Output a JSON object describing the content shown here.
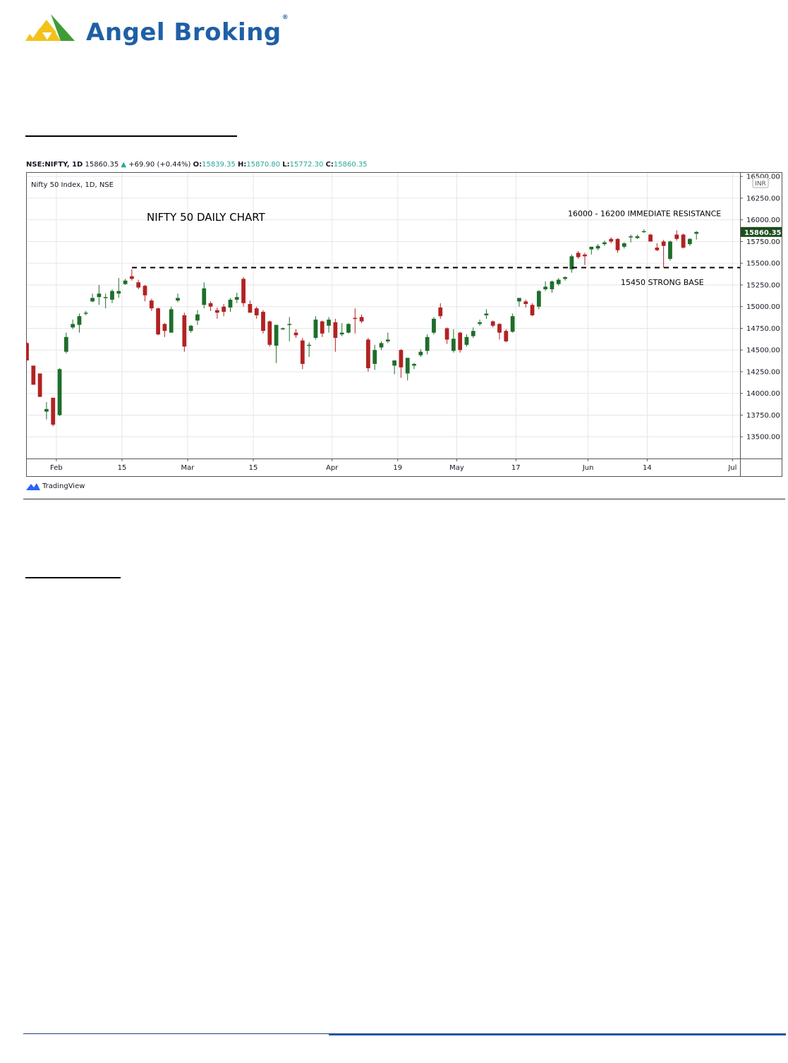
{
  "brand": {
    "name": "Angel Broking",
    "reg": "®"
  },
  "ohlc": {
    "symbol": "NSE:NIFTY, 1D",
    "last": "15860.35",
    "change": "+69.90 (+0.44%)",
    "o_label": "O:",
    "o": "15839.35",
    "h_label": "H:",
    "h": "15870.80",
    "l_label": "L:",
    "l": "15772.30",
    "c_label": "C:",
    "c": "15860.35"
  },
  "chart_data": {
    "type": "candlestick",
    "title": "NIFTY 50 DAILY CHART",
    "subtitle": "Nifty 50 Index, 1D, NSE",
    "currency": "INR",
    "last_price_label": "15860.35",
    "ylim": [
      13250,
      16550
    ],
    "y_ticks": [
      16500,
      16250,
      16000,
      15750,
      15500,
      15250,
      15000,
      14750,
      14500,
      14250,
      14000,
      13750,
      13500
    ],
    "y_tick_labels": [
      "16500.00",
      "16250.00",
      "16000.00",
      "15750.00",
      "15500.00",
      "15250.00",
      "15000.00",
      "14750.00",
      "14500.00",
      "14250.00",
      "14000.00",
      "13750.00",
      "13500.00"
    ],
    "x_ticks": [
      {
        "label": "Feb",
        "index": 4.5
      },
      {
        "label": "15",
        "index": 14.5
      },
      {
        "label": "Mar",
        "index": 24.5
      },
      {
        "label": "15",
        "index": 34.5
      },
      {
        "label": "Apr",
        "index": 46.5
      },
      {
        "label": "19",
        "index": 56.5
      },
      {
        "label": "May",
        "index": 65.5
      },
      {
        "label": "17",
        "index": 74.5
      },
      {
        "label": "Jun",
        "index": 85.5
      },
      {
        "label": "14",
        "index": 94.5
      },
      {
        "label": "Jul",
        "index": 107.5
      }
    ],
    "x_count": 109,
    "annotations": [
      {
        "text": "16000 - 16200 IMMEDIATE RESISTANCE",
        "value": 16040
      },
      {
        "text": "15450 STRONG BASE",
        "value": 15250
      },
      {
        "text": "support-line",
        "value": 15450
      }
    ],
    "candles": [
      {
        "o": 14580,
        "h": 14590,
        "l": 14380,
        "c": 14380
      },
      {
        "o": 14320,
        "h": 14320,
        "l": 14100,
        "c": 14100
      },
      {
        "o": 14230,
        "h": 14230,
        "l": 13960,
        "c": 13960
      },
      {
        "o": 13790,
        "h": 13900,
        "l": 13700,
        "c": 13820
      },
      {
        "o": 13950,
        "h": 13950,
        "l": 13620,
        "c": 13640
      },
      {
        "o": 13750,
        "h": 14290,
        "l": 13740,
        "c": 14280
      },
      {
        "o": 14480,
        "h": 14700,
        "l": 14460,
        "c": 14650
      },
      {
        "o": 14760,
        "h": 14850,
        "l": 14740,
        "c": 14800
      },
      {
        "o": 14790,
        "h": 14920,
        "l": 14700,
        "c": 14890
      },
      {
        "o": 14920,
        "h": 14950,
        "l": 14900,
        "c": 14930
      },
      {
        "o": 15060,
        "h": 15150,
        "l": 15050,
        "c": 15100
      },
      {
        "o": 15110,
        "h": 15250,
        "l": 15020,
        "c": 15150
      },
      {
        "o": 15100,
        "h": 15150,
        "l": 14980,
        "c": 15110
      },
      {
        "o": 15080,
        "h": 15200,
        "l": 15040,
        "c": 15180
      },
      {
        "o": 15150,
        "h": 15330,
        "l": 15100,
        "c": 15180
      },
      {
        "o": 15260,
        "h": 15320,
        "l": 15250,
        "c": 15300
      },
      {
        "o": 15350,
        "h": 15430,
        "l": 15300,
        "c": 15320
      },
      {
        "o": 15280,
        "h": 15310,
        "l": 15200,
        "c": 15220
      },
      {
        "o": 15240,
        "h": 15250,
        "l": 15060,
        "c": 15130
      },
      {
        "o": 15070,
        "h": 15090,
        "l": 14950,
        "c": 14980
      },
      {
        "o": 14980,
        "h": 14990,
        "l": 14670,
        "c": 14680
      },
      {
        "o": 14800,
        "h": 14810,
        "l": 14650,
        "c": 14720
      },
      {
        "o": 14700,
        "h": 15000,
        "l": 14700,
        "c": 14970
      },
      {
        "o": 15070,
        "h": 15150,
        "l": 15050,
        "c": 15100
      },
      {
        "o": 14900,
        "h": 14930,
        "l": 14480,
        "c": 14540
      },
      {
        "o": 14720,
        "h": 14790,
        "l": 14700,
        "c": 14780
      },
      {
        "o": 14840,
        "h": 14960,
        "l": 14790,
        "c": 14910
      },
      {
        "o": 15020,
        "h": 15280,
        "l": 14980,
        "c": 15210
      },
      {
        "o": 15040,
        "h": 15060,
        "l": 14950,
        "c": 15000
      },
      {
        "o": 14960,
        "h": 14990,
        "l": 14860,
        "c": 14930
      },
      {
        "o": 15000,
        "h": 15030,
        "l": 14890,
        "c": 14940
      },
      {
        "o": 14990,
        "h": 15100,
        "l": 14940,
        "c": 15080
      },
      {
        "o": 15080,
        "h": 15160,
        "l": 15040,
        "c": 15110
      },
      {
        "o": 15320,
        "h": 15340,
        "l": 15000,
        "c": 15040
      },
      {
        "o": 15030,
        "h": 15070,
        "l": 14950,
        "c": 14930
      },
      {
        "o": 14980,
        "h": 15000,
        "l": 14860,
        "c": 14900
      },
      {
        "o": 14940,
        "h": 14960,
        "l": 14690,
        "c": 14720
      },
      {
        "o": 14830,
        "h": 14840,
        "l": 14540,
        "c": 14560
      },
      {
        "o": 14550,
        "h": 14780,
        "l": 14350,
        "c": 14790
      },
      {
        "o": 14750,
        "h": 14760,
        "l": 14730,
        "c": 14750
      },
      {
        "o": 14800,
        "h": 14880,
        "l": 14600,
        "c": 14800
      },
      {
        "o": 14700,
        "h": 14740,
        "l": 14640,
        "c": 14670
      },
      {
        "o": 14610,
        "h": 14640,
        "l": 14280,
        "c": 14340
      },
      {
        "o": 14560,
        "h": 14590,
        "l": 14420,
        "c": 14560
      },
      {
        "o": 14640,
        "h": 14890,
        "l": 14620,
        "c": 14850
      },
      {
        "o": 14830,
        "h": 14840,
        "l": 14650,
        "c": 14690
      },
      {
        "o": 14780,
        "h": 14880,
        "l": 14700,
        "c": 14850
      },
      {
        "o": 14820,
        "h": 14860,
        "l": 14480,
        "c": 14640
      },
      {
        "o": 14680,
        "h": 14810,
        "l": 14660,
        "c": 14700
      },
      {
        "o": 14700,
        "h": 14810,
        "l": 14690,
        "c": 14800
      },
      {
        "o": 14870,
        "h": 14980,
        "l": 14690,
        "c": 14860
      },
      {
        "o": 14880,
        "h": 14910,
        "l": 14810,
        "c": 14830
      },
      {
        "o": 14620,
        "h": 14640,
        "l": 14250,
        "c": 14290
      },
      {
        "o": 14340,
        "h": 14560,
        "l": 14270,
        "c": 14500
      },
      {
        "o": 14530,
        "h": 14600,
        "l": 14500,
        "c": 14580
      },
      {
        "o": 14600,
        "h": 14700,
        "l": 14580,
        "c": 14620
      },
      {
        "o": 14320,
        "h": 14380,
        "l": 14220,
        "c": 14380
      },
      {
        "o": 14500,
        "h": 14510,
        "l": 14180,
        "c": 14300
      },
      {
        "o": 14230,
        "h": 14400,
        "l": 14150,
        "c": 14410
      },
      {
        "o": 14320,
        "h": 14350,
        "l": 14280,
        "c": 14340
      },
      {
        "o": 14440,
        "h": 14510,
        "l": 14420,
        "c": 14480
      },
      {
        "o": 14490,
        "h": 14680,
        "l": 14450,
        "c": 14650
      },
      {
        "o": 14700,
        "h": 14880,
        "l": 14680,
        "c": 14860
      },
      {
        "o": 14990,
        "h": 15040,
        "l": 14860,
        "c": 14890
      },
      {
        "o": 14750,
        "h": 14760,
        "l": 14570,
        "c": 14620
      },
      {
        "o": 14490,
        "h": 14740,
        "l": 14470,
        "c": 14630
      },
      {
        "o": 14700,
        "h": 14710,
        "l": 14470,
        "c": 14500
      },
      {
        "o": 14560,
        "h": 14680,
        "l": 14540,
        "c": 14650
      },
      {
        "o": 14660,
        "h": 14760,
        "l": 14640,
        "c": 14720
      },
      {
        "o": 14800,
        "h": 14850,
        "l": 14780,
        "c": 14820
      },
      {
        "o": 14900,
        "h": 14970,
        "l": 14860,
        "c": 14920
      },
      {
        "o": 14830,
        "h": 14840,
        "l": 14760,
        "c": 14780
      },
      {
        "o": 14800,
        "h": 14810,
        "l": 14620,
        "c": 14700
      },
      {
        "o": 14720,
        "h": 14740,
        "l": 14590,
        "c": 14600
      },
      {
        "o": 14710,
        "h": 14920,
        "l": 14700,
        "c": 14890
      },
      {
        "o": 15060,
        "h": 15100,
        "l": 15000,
        "c": 15100
      },
      {
        "o": 15060,
        "h": 15080,
        "l": 14990,
        "c": 15030
      },
      {
        "o": 15020,
        "h": 15040,
        "l": 14890,
        "c": 14900
      },
      {
        "o": 15000,
        "h": 15190,
        "l": 14970,
        "c": 15180
      },
      {
        "o": 15200,
        "h": 15290,
        "l": 15180,
        "c": 15230
      },
      {
        "o": 15200,
        "h": 15300,
        "l": 15160,
        "c": 15290
      },
      {
        "o": 15260,
        "h": 15330,
        "l": 15240,
        "c": 15310
      },
      {
        "o": 15320,
        "h": 15350,
        "l": 15300,
        "c": 15340
      },
      {
        "o": 15430,
        "h": 15600,
        "l": 15390,
        "c": 15580
      },
      {
        "o": 15620,
        "h": 15640,
        "l": 15550,
        "c": 15570
      },
      {
        "o": 15600,
        "h": 15620,
        "l": 15480,
        "c": 15580
      },
      {
        "o": 15660,
        "h": 15690,
        "l": 15600,
        "c": 15690
      },
      {
        "o": 15670,
        "h": 15720,
        "l": 15650,
        "c": 15700
      },
      {
        "o": 15720,
        "h": 15760,
        "l": 15700,
        "c": 15740
      },
      {
        "o": 15780,
        "h": 15800,
        "l": 15730,
        "c": 15750
      },
      {
        "o": 15780,
        "h": 15790,
        "l": 15620,
        "c": 15650
      },
      {
        "o": 15690,
        "h": 15740,
        "l": 15670,
        "c": 15730
      },
      {
        "o": 15800,
        "h": 15830,
        "l": 15740,
        "c": 15810
      },
      {
        "o": 15790,
        "h": 15830,
        "l": 15780,
        "c": 15810
      },
      {
        "o": 15860,
        "h": 15890,
        "l": 15850,
        "c": 15870
      },
      {
        "o": 15830,
        "h": 15840,
        "l": 15750,
        "c": 15750
      },
      {
        "o": 15680,
        "h": 15730,
        "l": 15640,
        "c": 15650
      },
      {
        "o": 15750,
        "h": 15770,
        "l": 15450,
        "c": 15700
      },
      {
        "o": 15550,
        "h": 15760,
        "l": 15530,
        "c": 15750
      },
      {
        "o": 15830,
        "h": 15880,
        "l": 15760,
        "c": 15780
      },
      {
        "o": 15830,
        "h": 15840,
        "l": 15670,
        "c": 15680
      },
      {
        "o": 15720,
        "h": 15790,
        "l": 15700,
        "c": 15780
      },
      {
        "o": 15839.35,
        "h": 15870.8,
        "l": 15772.3,
        "c": 15860.35
      }
    ]
  },
  "footer": {
    "brand": "TradingView"
  },
  "colors": {
    "up": "#1e6e2a",
    "down": "#b22222",
    "grid": "#e6e6e6",
    "brand": "#1f5fa6",
    "logo_green": "#3f9c35",
    "logo_yellow": "#f2c21b"
  }
}
